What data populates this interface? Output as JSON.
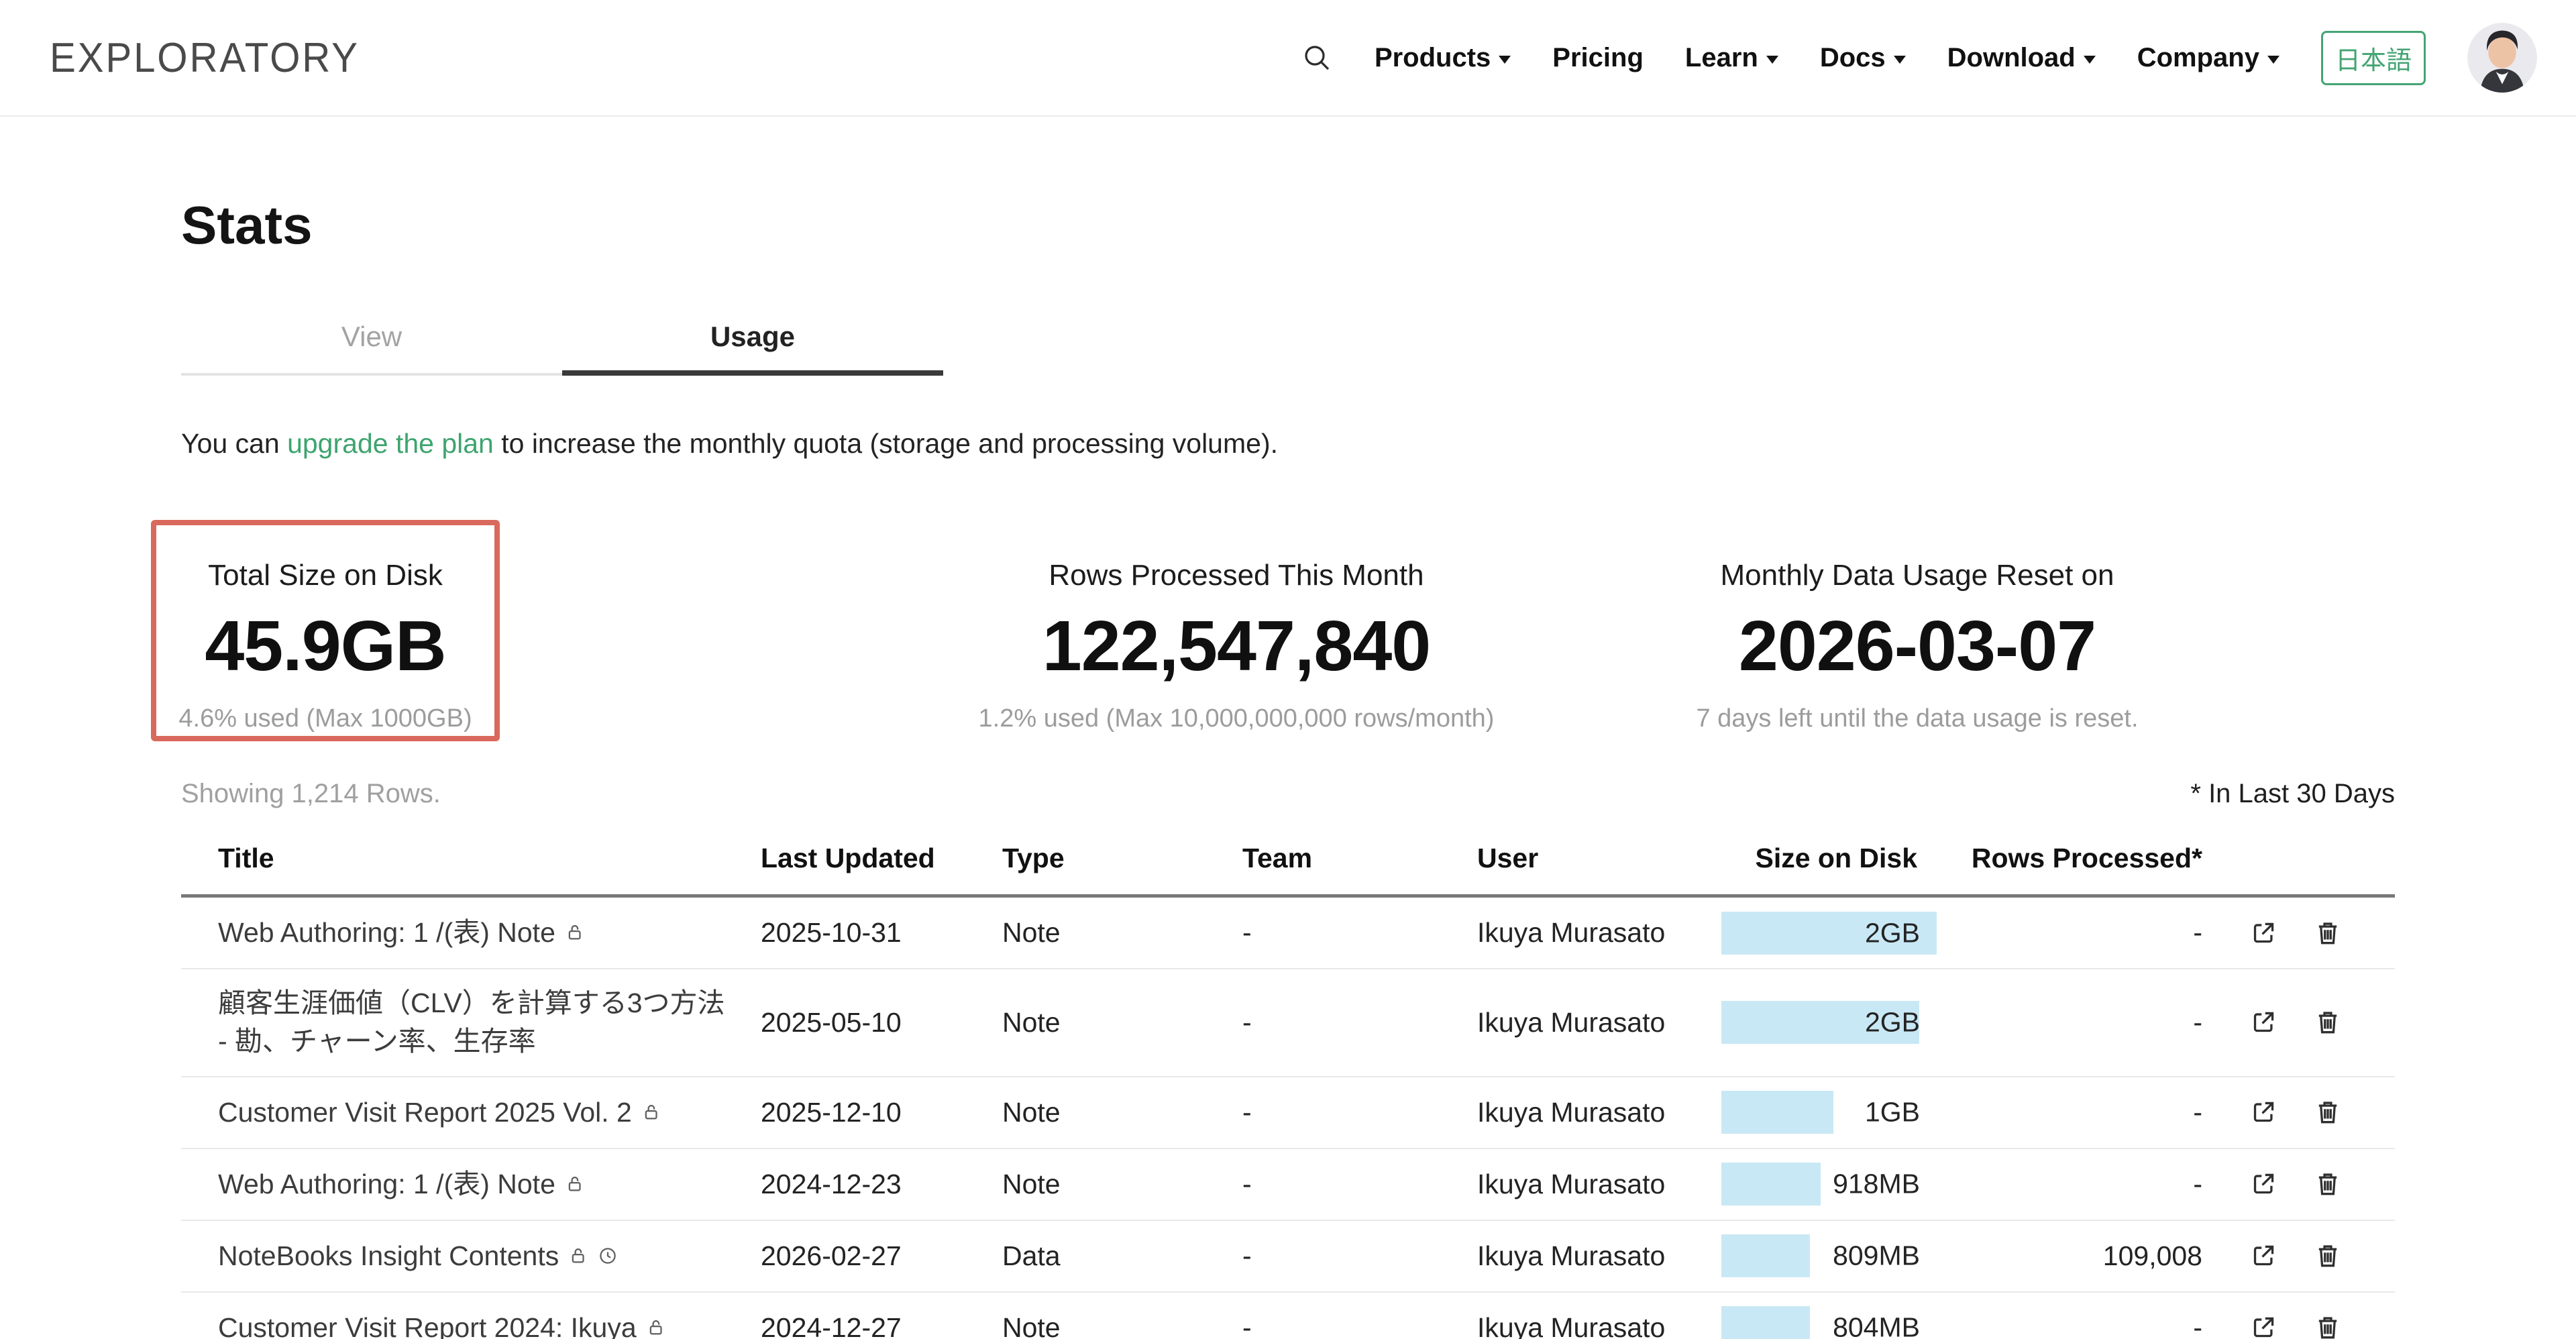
{
  "brand": {
    "logo": "EXPLORATORY",
    "accent_green": "#3EA46F",
    "highlight_red": "#D9695C",
    "bar_blue": "#C9E8F5"
  },
  "nav": {
    "items": [
      {
        "label": "Products",
        "dropdown": true
      },
      {
        "label": "Pricing",
        "dropdown": false
      },
      {
        "label": "Learn",
        "dropdown": true
      },
      {
        "label": "Docs",
        "dropdown": true
      },
      {
        "label": "Download",
        "dropdown": true
      },
      {
        "label": "Company",
        "dropdown": true
      }
    ],
    "language_button": "日本語"
  },
  "page": {
    "title": "Stats",
    "tabs": [
      {
        "label": "View",
        "active": false
      },
      {
        "label": "Usage",
        "active": true
      }
    ],
    "notice": {
      "prefix": "You can ",
      "link": "upgrade the plan",
      "suffix": " to increase the monthly quota (storage and processing volume)."
    }
  },
  "stat_cards": [
    {
      "label": "Total Size on Disk",
      "value": "45.9GB",
      "subtext": "4.6% used (Max 1000GB)",
      "highlighted": true
    },
    {
      "label": "Rows Processed This Month",
      "value": "122,547,840",
      "subtext": "1.2% used (Max 10,000,000,000 rows/month)",
      "highlighted": false
    },
    {
      "label": "Monthly Data Usage Reset on",
      "value": "2026-03-07",
      "subtext": "7 days left until the data usage is reset.",
      "highlighted": false
    }
  ],
  "table": {
    "showing": "Showing 1,214 Rows.",
    "footnote": "* In Last 30 Days",
    "headers": [
      "Title",
      "Last Updated",
      "Type",
      "Team",
      "User",
      "Size on Disk",
      "Rows Processed*"
    ],
    "rows": [
      {
        "title": "Web Authoring: 1 /(表) Note",
        "title_icons": [
          "lock"
        ],
        "last_updated": "2025-10-31",
        "type": "Note",
        "team": "-",
        "user": "Ikuya Murasato",
        "size": "2GB",
        "bar_pct": 100,
        "rows_processed": "-"
      },
      {
        "title": "顧客生涯価値（CLV）を計算する3つ方法 - 勘、チャーン率、生存率",
        "title_icons": [],
        "last_updated": "2025-05-10",
        "type": "Note",
        "team": "-",
        "user": "Ikuya Murasato",
        "size": "2GB",
        "bar_pct": 92,
        "rows_processed": "-"
      },
      {
        "title": "Customer Visit Report 2025 Vol. 2",
        "title_icons": [
          "lock"
        ],
        "last_updated": "2025-12-10",
        "type": "Note",
        "team": "-",
        "user": "Ikuya Murasato",
        "size": "1GB",
        "bar_pct": 52,
        "rows_processed": "-"
      },
      {
        "title": "Web Authoring: 1 /(表) Note",
        "title_icons": [
          "lock"
        ],
        "last_updated": "2024-12-23",
        "type": "Note",
        "team": "-",
        "user": "Ikuya Murasato",
        "size": "918MB",
        "bar_pct": 46,
        "rows_processed": "-"
      },
      {
        "title": "NoteBooks Insight Contents",
        "title_icons": [
          "lock",
          "clock"
        ],
        "last_updated": "2026-02-27",
        "type": "Data",
        "team": "-",
        "user": "Ikuya Murasato",
        "size": "809MB",
        "bar_pct": 41,
        "rows_processed": "109,008"
      },
      {
        "title": "Customer Visit Report 2024: Ikuya",
        "title_icons": [
          "lock"
        ],
        "last_updated": "2024-12-27",
        "type": "Note",
        "team": "-",
        "user": "Ikuya Murasato",
        "size": "804MB",
        "bar_pct": 41,
        "rows_processed": "-"
      }
    ]
  }
}
